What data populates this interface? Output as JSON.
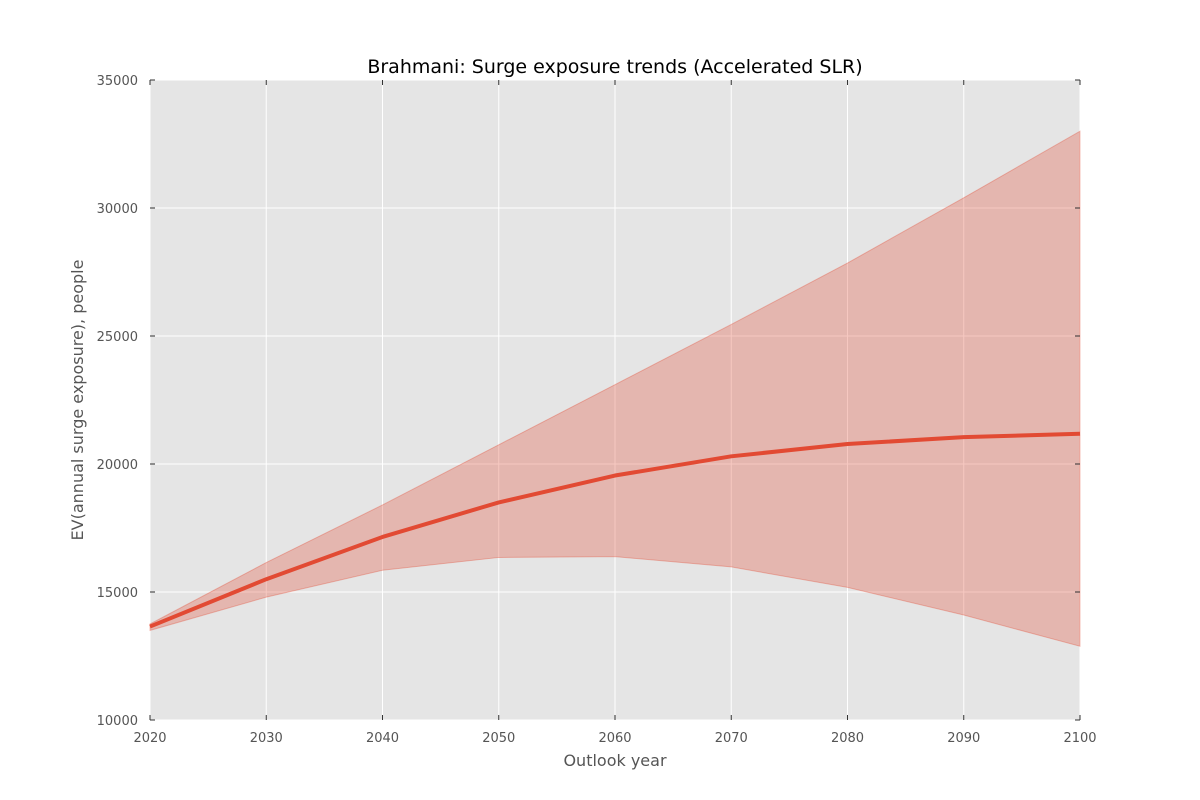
{
  "chart_data": {
    "type": "line",
    "title": "Brahmani: Surge exposure trends (Accelerated SLR)",
    "xlabel": "Outlook year",
    "ylabel": "EV(annual surge exposure), people",
    "x": [
      2020,
      2030,
      2040,
      2050,
      2060,
      2070,
      2080,
      2090,
      2100
    ],
    "xlim": [
      2020,
      2100
    ],
    "ylim": [
      10000,
      35000
    ],
    "xticks": [
      2020,
      2030,
      2040,
      2050,
      2060,
      2070,
      2080,
      2090,
      2100
    ],
    "yticks": [
      10000,
      15000,
      20000,
      25000,
      30000,
      35000
    ],
    "grid": true,
    "series": [
      {
        "values": [
          13650,
          15500,
          17150,
          18500,
          19550,
          20300,
          20780,
          21050,
          21180
        ],
        "lower": [
          13500,
          14800,
          15850,
          16350,
          16380,
          15980,
          15180,
          14100,
          12880
        ],
        "upper": [
          13750,
          16150,
          18400,
          20750,
          23100,
          25450,
          27850,
          30400,
          33000
        ]
      }
    ],
    "colors": {
      "line": "#e24a33",
      "band": "#e24a33",
      "plot_background": "#e5e5e5",
      "grid": "#ffffff"
    }
  }
}
